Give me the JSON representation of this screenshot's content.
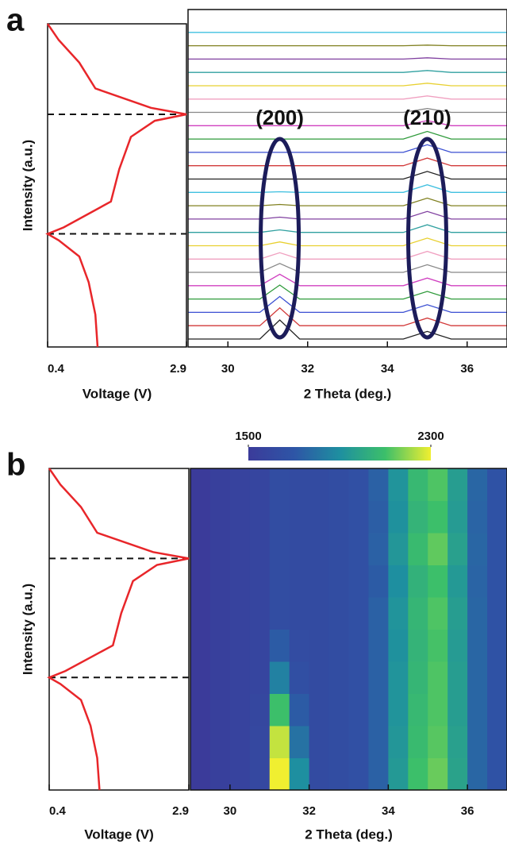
{
  "chart_data": [
    {
      "type": "line",
      "panel_label": "a",
      "x_label": "Voltage (V)",
      "y_label": "Intensity (a.u.)",
      "color": "#e8262a",
      "xlim": [
        0.4,
        2.9
      ],
      "xticks": [
        0.4,
        2.9
      ],
      "ylim": [
        0,
        1
      ],
      "y": [
        0,
        0.1,
        0.2,
        0.28,
        0.33,
        0.35,
        0.37,
        0.45,
        0.55,
        0.65,
        0.7,
        0.72,
        0.74,
        0.8,
        0.88,
        0.95,
        1
      ],
      "x": [
        1.3,
        1.26,
        1.14,
        0.97,
        0.6,
        0.4,
        0.69,
        1.54,
        1.69,
        1.9,
        2.33,
        2.9,
        2.26,
        1.26,
        0.97,
        0.6,
        0.4
      ],
      "reference_lines": [
        0.35,
        0.72
      ]
    },
    {
      "type": "stacked_lines",
      "x_label": "2 Theta (deg.)",
      "xlim": [
        29,
        37
      ],
      "xticks": [
        30,
        32,
        34,
        36
      ],
      "x": [
        29,
        30.8,
        31.3,
        31.8,
        34.4,
        35,
        35.6,
        37
      ],
      "annotations": [
        {
          "label": "(200)",
          "x": 31.3
        },
        {
          "label": "(210)",
          "x": 35
        }
      ],
      "series": [
        {
          "color": "#222222",
          "values": [
            0,
            0,
            3,
            0,
            0,
            1.2,
            0,
            0
          ]
        },
        {
          "color": "#d23a3a",
          "values": [
            0,
            0,
            2.8,
            0,
            0,
            1.2,
            0,
            0
          ]
        },
        {
          "color": "#3a4fd2",
          "values": [
            0,
            0,
            2.5,
            0,
            0,
            1.2,
            0,
            0
          ]
        },
        {
          "color": "#2e9a3a",
          "values": [
            0,
            0,
            2.2,
            0,
            0,
            1.2,
            0,
            0
          ]
        },
        {
          "color": "#d040c0",
          "values": [
            0,
            0,
            1.8,
            0,
            0,
            1.2,
            0,
            0
          ]
        },
        {
          "color": "#888888",
          "values": [
            0,
            0,
            1.4,
            0,
            0,
            1.2,
            0,
            0
          ]
        },
        {
          "color": "#f0a0c0",
          "values": [
            0,
            0,
            1,
            0,
            0,
            1.2,
            0,
            0
          ]
        },
        {
          "color": "#e8d030",
          "values": [
            0,
            0,
            0.6,
            0,
            0,
            1.2,
            0,
            0
          ]
        },
        {
          "color": "#30a0a0",
          "values": [
            0,
            0,
            0.4,
            0,
            0,
            1.2,
            0,
            0
          ]
        },
        {
          "color": "#8040a0",
          "values": [
            0,
            0,
            0.3,
            0,
            0,
            1.2,
            0,
            0
          ]
        },
        {
          "color": "#808020",
          "values": [
            0,
            0,
            0.2,
            0,
            0,
            1.2,
            0,
            0
          ]
        },
        {
          "color": "#40c0e0",
          "values": [
            0,
            0,
            0.1,
            0,
            0,
            1.2,
            0,
            0
          ]
        },
        {
          "color": "#222222",
          "values": [
            0,
            0,
            0,
            0,
            0,
            1.2,
            0,
            0
          ]
        },
        {
          "color": "#d23a3a",
          "values": [
            0,
            0,
            0,
            0,
            0,
            1.2,
            0,
            0
          ]
        },
        {
          "color": "#3a4fd2",
          "values": [
            0,
            0,
            0,
            0,
            0,
            1.2,
            0,
            0
          ]
        },
        {
          "color": "#2e9a3a",
          "values": [
            0,
            0,
            0,
            0,
            0,
            1.2,
            0,
            0
          ]
        },
        {
          "color": "#d040c0",
          "values": [
            0,
            0,
            0,
            0,
            0,
            0.8,
            0,
            0
          ]
        },
        {
          "color": "#888888",
          "values": [
            0,
            0,
            0,
            0,
            0,
            0.6,
            0,
            0
          ]
        },
        {
          "color": "#f0a0c0",
          "values": [
            0,
            0,
            0,
            0,
            0,
            0.5,
            0,
            0
          ]
        },
        {
          "color": "#e8d030",
          "values": [
            0,
            0,
            0,
            0,
            0,
            0.4,
            0,
            0
          ]
        },
        {
          "color": "#30a0a0",
          "values": [
            0,
            0,
            0,
            0,
            0,
            0.3,
            0,
            0
          ]
        },
        {
          "color": "#8040a0",
          "values": [
            0,
            0,
            0,
            0,
            0,
            0.2,
            0,
            0
          ]
        },
        {
          "color": "#808020",
          "values": [
            0,
            0,
            0,
            0,
            0,
            0.1,
            0,
            0
          ]
        },
        {
          "color": "#40c0e0",
          "values": [
            0,
            0,
            0,
            0,
            0,
            0,
            0,
            0
          ]
        }
      ]
    },
    {
      "type": "line",
      "panel_label": "b",
      "x_label": "Voltage (V)",
      "y_label": "Intensity (a.u.)",
      "color": "#e8262a",
      "xlim": [
        0.4,
        2.9
      ],
      "xticks": [
        0.4,
        2.9
      ],
      "ylim": [
        0,
        1
      ],
      "y": [
        0,
        0.1,
        0.2,
        0.28,
        0.33,
        0.35,
        0.37,
        0.45,
        0.55,
        0.65,
        0.7,
        0.72,
        0.74,
        0.8,
        0.88,
        0.95,
        1
      ],
      "x": [
        1.3,
        1.26,
        1.14,
        0.97,
        0.6,
        0.4,
        0.69,
        1.54,
        1.69,
        1.9,
        2.33,
        2.9,
        2.26,
        1.26,
        0.97,
        0.6,
        0.4
      ],
      "reference_lines": [
        0.35,
        0.72
      ]
    },
    {
      "type": "heatmap",
      "x_label": "2 Theta (deg.)",
      "xlim": [
        29,
        37
      ],
      "xticks": [
        30,
        32,
        34,
        36
      ],
      "ylim": [
        0,
        1
      ],
      "clim": [
        1500,
        2300
      ],
      "cbar_ticks": [
        1500,
        2300
      ],
      "colormap": [
        "#3b3b9a",
        "#2e55a6",
        "#1e8fa0",
        "#3cbf6a",
        "#f0ef30"
      ],
      "x_bins": [
        29,
        29.5,
        30,
        30.5,
        31,
        31.5,
        32,
        32.5,
        33,
        33.5,
        34,
        34.5,
        35,
        35.5,
        36,
        36.5,
        37
      ],
      "y_bins": [
        0,
        0.1,
        0.2,
        0.3,
        0.4,
        0.5,
        0.6,
        0.7,
        0.8,
        0.9,
        1
      ],
      "z": [
        [
          1470,
          1540,
          1560,
          1600,
          2300,
          1900,
          1620,
          1640,
          1660,
          1740,
          1940,
          2100,
          2150,
          1980,
          1760,
          1680
        ],
        [
          1470,
          1540,
          1560,
          1600,
          2250,
          1800,
          1620,
          1640,
          1660,
          1740,
          1930,
          2080,
          2130,
          1970,
          1760,
          1680
        ],
        [
          1470,
          1540,
          1560,
          1590,
          2100,
          1720,
          1620,
          1640,
          1660,
          1740,
          1920,
          2070,
          2120,
          1960,
          1760,
          1680
        ],
        [
          1470,
          1540,
          1560,
          1580,
          1850,
          1650,
          1620,
          1640,
          1660,
          1740,
          1920,
          2060,
          2120,
          1960,
          1760,
          1680
        ],
        [
          1470,
          1540,
          1560,
          1580,
          1720,
          1630,
          1620,
          1640,
          1660,
          1740,
          1910,
          2050,
          2110,
          1950,
          1760,
          1680
        ],
        [
          1470,
          1540,
          1560,
          1580,
          1640,
          1620,
          1620,
          1640,
          1660,
          1740,
          1920,
          2060,
          2120,
          1960,
          1760,
          1680
        ],
        [
          1470,
          1540,
          1560,
          1580,
          1640,
          1620,
          1620,
          1640,
          1660,
          1720,
          1900,
          2040,
          2100,
          1940,
          1750,
          1680
        ],
        [
          1470,
          1540,
          1560,
          1580,
          1640,
          1620,
          1620,
          1640,
          1660,
          1740,
          1930,
          2080,
          2140,
          1970,
          1760,
          1680
        ],
        [
          1470,
          1540,
          1560,
          1580,
          1640,
          1620,
          1620,
          1640,
          1660,
          1730,
          1910,
          2050,
          2100,
          1950,
          1750,
          1680
        ],
        [
          1470,
          1540,
          1560,
          1580,
          1640,
          1620,
          1620,
          1640,
          1660,
          1740,
          1920,
          2070,
          2120,
          1960,
          1760,
          1680
        ]
      ]
    }
  ]
}
